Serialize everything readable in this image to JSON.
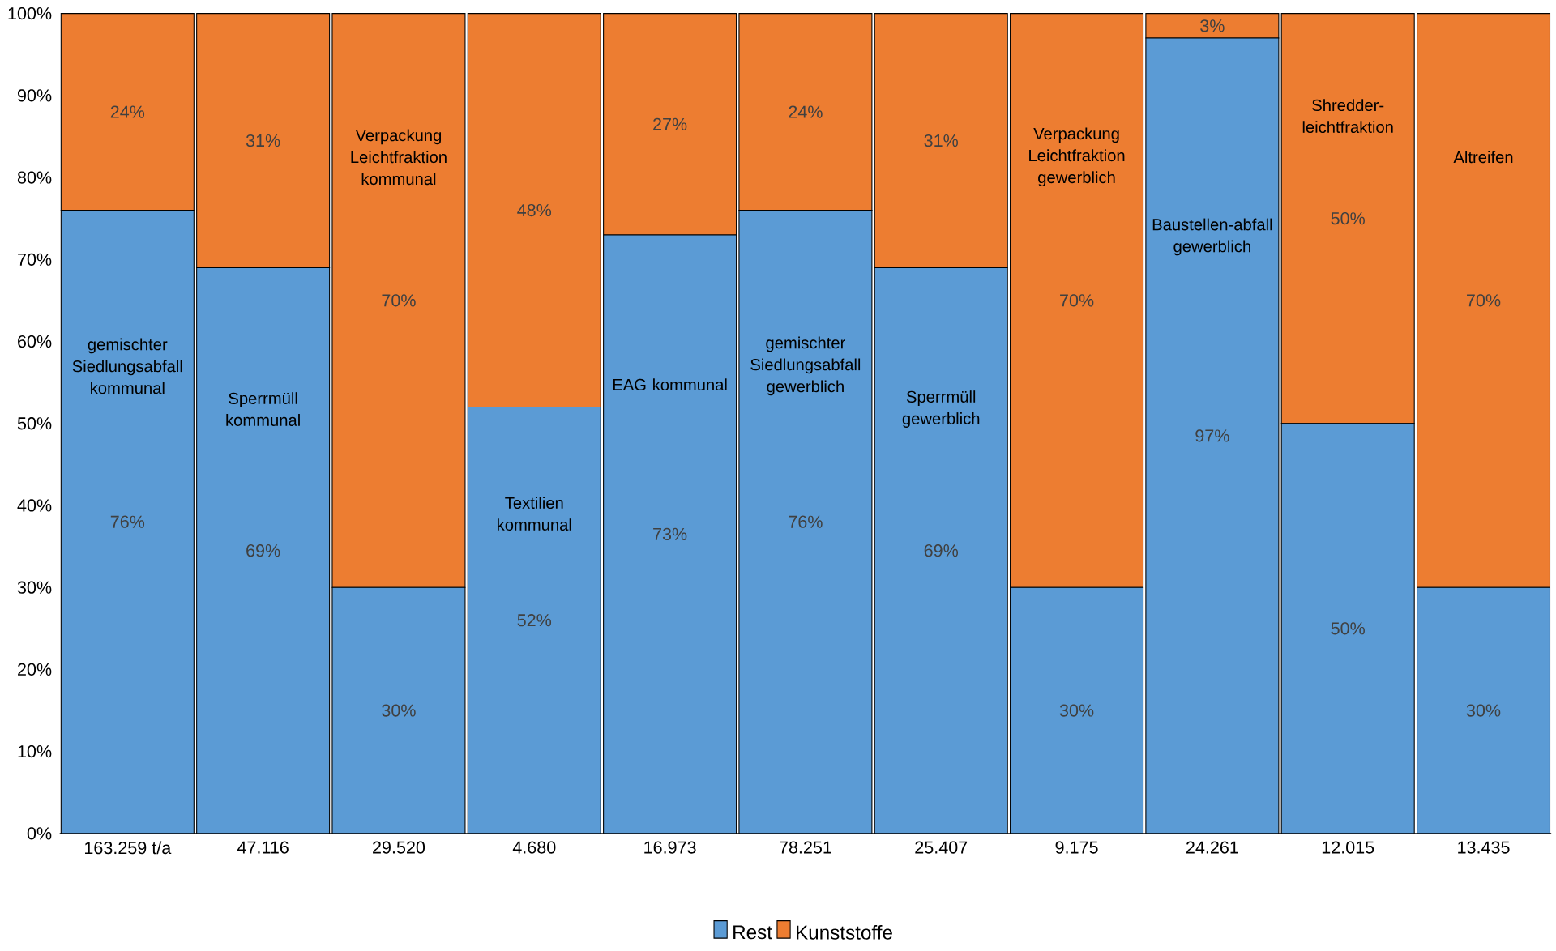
{
  "chart_data": {
    "type": "bar",
    "stacked": true,
    "categories": [
      "163.259 t/a",
      "47.116",
      "29.520",
      "4.680",
      "16.973",
      "78.251",
      "25.407",
      "9.175",
      "24.261",
      "12.015",
      "13.435"
    ],
    "series": [
      {
        "name": "Rest",
        "color": "#5b9bd5",
        "values": [
          76,
          69,
          30,
          52,
          73,
          76,
          69,
          30,
          97,
          50,
          30
        ],
        "value_labels": [
          "76%",
          "69%",
          "30%",
          "52%",
          "73%",
          "76%",
          "69%",
          "30%",
          "97%",
          "50%",
          "30%"
        ]
      },
      {
        "name": "Kunststoffe",
        "color": "#ed7d31",
        "values": [
          24,
          31,
          70,
          48,
          27,
          24,
          31,
          70,
          3,
          50,
          70
        ],
        "value_labels": [
          "24%",
          "31%",
          "70%",
          "48%",
          "27%",
          "24%",
          "31%",
          "70%",
          "3%",
          "50%",
          "70%"
        ]
      }
    ],
    "ylim": [
      0,
      100
    ],
    "yticks": [
      {
        "value": 0,
        "label": "0%"
      },
      {
        "value": 10,
        "label": "10%"
      },
      {
        "value": 20,
        "label": "20%"
      },
      {
        "value": 30,
        "label": "30%"
      },
      {
        "value": 40,
        "label": "40%"
      },
      {
        "value": 50,
        "label": "50%"
      },
      {
        "value": 60,
        "label": "60%"
      },
      {
        "value": 70,
        "label": "70%"
      },
      {
        "value": 80,
        "label": "80%"
      },
      {
        "value": 90,
        "label": "90%"
      },
      {
        "value": 100,
        "label": "100%"
      }
    ],
    "legend": "bottom",
    "annotations": [
      "gemischter Siedlungsabfall kommunal",
      "Sperrmüll kommunal",
      "Verpackung Leichtfraktion kommunal",
      "Textilien kommunal",
      "EAG kommunal",
      "gemischter Siedlungsabfall gewerblich",
      "Sperrmüll gewerblich",
      "Verpackung Leichtfraktion gewerblich",
      "Baustellen-abfall gewerblich",
      "Shredder-leichtfraktion",
      "Altreifen"
    ]
  }
}
